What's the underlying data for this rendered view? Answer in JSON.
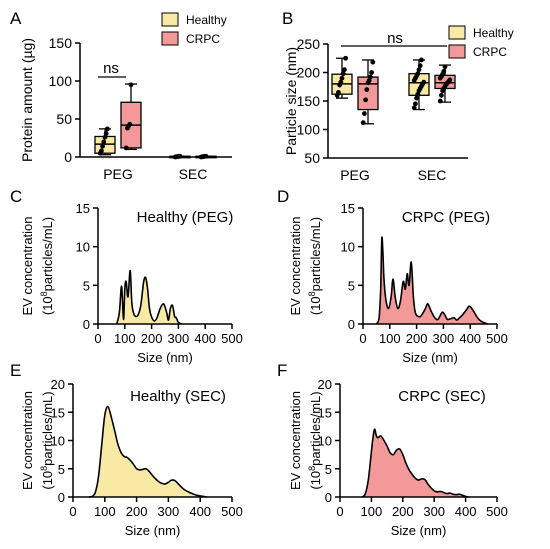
{
  "colors": {
    "healthy": "#f8eaa5",
    "crpc": "#f4999a",
    "stroke": "#000000"
  },
  "chart_data": [
    {
      "panel": "A",
      "type": "box",
      "ylabel": "Protein amount (µg)",
      "ylim": [
        0,
        150
      ],
      "yticks": [
        "0",
        "50",
        "100",
        "150"
      ],
      "categories": [
        "PEG",
        "SEC"
      ],
      "legend": [
        "Healthy",
        "CRPC"
      ],
      "annotation": "ns",
      "series": [
        {
          "name": "Healthy",
          "boxes": [
            {
              "category": "PEG",
              "min": 3,
              "q1": 5,
              "median": 17,
              "q3": 27,
              "max": 37,
              "points": [
                5,
                8,
                14,
                20,
                26,
                31,
                37
              ]
            },
            {
              "category": "SEC",
              "min": 0,
              "q1": 0,
              "median": 0.5,
              "q3": 1,
              "max": 1,
              "points": [
                0,
                0.3,
                0.6,
                0.9,
                1
              ]
            }
          ]
        },
        {
          "name": "CRPC",
          "boxes": [
            {
              "category": "PEG",
              "min": 10,
              "q1": 12,
              "median": 42,
              "q3": 72,
              "max": 96,
              "points": [
                12,
                38,
                41,
                43,
                95
              ]
            },
            {
              "category": "SEC",
              "min": 0,
              "q1": 0,
              "median": 0.5,
              "q3": 1,
              "max": 1,
              "points": [
                0,
                0.3,
                0.6,
                0.9,
                1
              ]
            }
          ]
        }
      ]
    },
    {
      "panel": "B",
      "type": "box",
      "ylabel": "Particle size (nm)",
      "ylim": [
        50,
        250
      ],
      "yticks": [
        "50",
        "100",
        "150",
        "200",
        "250"
      ],
      "categories": [
        "PEG",
        "SEC"
      ],
      "legend": [
        "Healthy",
        "CRPC"
      ],
      "annotation": "ns",
      "series": [
        {
          "name": "Healthy",
          "boxes": [
            {
              "category": "PEG",
              "min": 155,
              "q1": 162,
              "median": 180,
              "q3": 197,
              "max": 225,
              "points": [
                160,
                165,
                178,
                183,
                190,
                198,
                205,
                225
              ]
            },
            {
              "category": "SEC",
              "min": 135,
              "q1": 160,
              "median": 182,
              "q3": 198,
              "max": 222,
              "points": [
                138,
                145,
                155,
                162,
                168,
                172,
                176,
                180,
                183,
                186,
                190,
                194,
                198,
                205,
                212,
                222
              ]
            }
          ]
        },
        {
          "name": "CRPC",
          "boxes": [
            {
              "category": "PEG",
              "min": 110,
              "q1": 135,
              "median": 180,
              "q3": 192,
              "max": 222,
              "points": [
                112,
                128,
                152,
                170,
                182,
                186,
                192,
                200,
                218
              ]
            },
            {
              "category": "SEC",
              "min": 148,
              "q1": 172,
              "median": 182,
              "q3": 195,
              "max": 213,
              "points": [
                150,
                160,
                168,
                172,
                176,
                179,
                182,
                184,
                187,
                190,
                193,
                197,
                202,
                210
              ]
            }
          ]
        }
      ]
    },
    {
      "panel": "C",
      "type": "area",
      "title": "Healthy (PEG)",
      "xlabel": "Size (nm)",
      "ylabel_line1": "EV concentration",
      "ylabel_line2": "particles/mL)",
      "xlim": [
        0,
        500
      ],
      "ylim": [
        0,
        15
      ],
      "xticks": [
        "0",
        "100",
        "200",
        "300",
        "400",
        "500"
      ],
      "yticks": [
        "0",
        "5",
        "10",
        "15"
      ],
      "x": [
        70,
        80,
        88,
        95,
        100,
        105,
        112,
        120,
        126,
        132,
        140,
        150,
        160,
        170,
        178,
        185,
        192,
        200,
        210,
        220,
        232,
        245,
        256,
        263,
        270,
        278,
        286,
        292,
        298,
        305,
        312
      ],
      "y": [
        0,
        1.5,
        4.9,
        0.6,
        4.5,
        5.5,
        3.5,
        6.9,
        2.8,
        1.5,
        1.0,
        1.2,
        2.5,
        5.4,
        6.0,
        4.5,
        2.0,
        0.9,
        0.4,
        0.8,
        2.0,
        2.6,
        1.5,
        0.5,
        2.0,
        2.4,
        1.0,
        0.8,
        0.3,
        0.1,
        0
      ]
    },
    {
      "panel": "D",
      "type": "area",
      "title": "CRPC (PEG)",
      "xlabel": "Size (nm)",
      "ylabel_line1": "EV concentration",
      "ylabel_line2": "particles/mL)",
      "xlim": [
        0,
        500
      ],
      "ylim": [
        0,
        15
      ],
      "xticks": [
        "0",
        "100",
        "200",
        "300",
        "400",
        "500"
      ],
      "yticks": [
        "0",
        "5",
        "10",
        "15"
      ],
      "x": [
        50,
        60,
        66,
        70,
        74,
        78,
        85,
        95,
        105,
        112,
        120,
        130,
        140,
        150,
        158,
        165,
        172,
        180,
        188,
        195,
        205,
        215,
        225,
        233,
        242,
        255,
        268,
        280,
        295,
        305,
        315,
        328,
        340,
        350,
        360,
        372,
        385,
        397,
        410,
        422,
        435,
        450,
        465
      ],
      "y": [
        0,
        0.8,
        4.5,
        11.0,
        9.5,
        6.0,
        3.2,
        2.0,
        3.5,
        5.8,
        3.5,
        2.0,
        3.0,
        5.5,
        4.5,
        6.5,
        5.0,
        8.0,
        3.5,
        1.5,
        1.0,
        1.0,
        1.5,
        2.0,
        2.6,
        1.6,
        0.8,
        0.6,
        1.5,
        1.2,
        0.6,
        0.7,
        0.8,
        0.5,
        0.8,
        1.2,
        1.8,
        2.3,
        1.8,
        1.1,
        0.5,
        0.2,
        0
      ]
    },
    {
      "panel": "E",
      "type": "area",
      "title": "Healthy (SEC)",
      "xlabel": "Size (nm)",
      "ylabel_line1": "EV concentration",
      "ylabel_line2": "particles/mL)",
      "xlim": [
        0,
        500
      ],
      "ylim": [
        0,
        20
      ],
      "xticks": [
        "0",
        "100",
        "200",
        "300",
        "400",
        "500"
      ],
      "yticks": [
        "0",
        "5",
        "10",
        "15",
        "20"
      ],
      "x": [
        50,
        60,
        70,
        80,
        90,
        100,
        110,
        120,
        130,
        140,
        150,
        160,
        170,
        180,
        190,
        200,
        210,
        220,
        230,
        240,
        250,
        260,
        270,
        280,
        290,
        300,
        310,
        320,
        330,
        340,
        350,
        360,
        370,
        380,
        390,
        400,
        410,
        420
      ],
      "y": [
        0,
        0.1,
        0.8,
        3.5,
        9.0,
        14.5,
        16.0,
        14.2,
        12.0,
        9.6,
        8.0,
        7.2,
        7.0,
        6.5,
        5.8,
        5.0,
        4.8,
        4.9,
        5.0,
        4.5,
        3.8,
        3.2,
        2.7,
        2.4,
        2.3,
        2.6,
        3.0,
        2.9,
        2.4,
        1.8,
        1.3,
        1.0,
        0.7,
        0.5,
        0.3,
        0.2,
        0.1,
        0
      ]
    },
    {
      "panel": "F",
      "type": "area",
      "title": "CRPC (SEC)",
      "xlabel": "Size (nm)",
      "ylabel_line1": "EV concentration",
      "ylabel_line2": "particles/mL)",
      "xlim": [
        0,
        500
      ],
      "ylim": [
        0,
        20
      ],
      "xticks": [
        "0",
        "100",
        "200",
        "300",
        "400",
        "500"
      ],
      "yticks": [
        "0",
        "5",
        "10",
        "15",
        "20"
      ],
      "x": [
        70,
        80,
        90,
        100,
        105,
        110,
        115,
        120,
        130,
        140,
        150,
        160,
        170,
        180,
        190,
        200,
        210,
        220,
        230,
        240,
        250,
        260,
        270,
        280,
        290,
        300,
        310,
        320,
        330,
        340,
        350,
        360,
        370,
        380,
        390,
        400,
        410
      ],
      "y": [
        0,
        0.5,
        3.0,
        8.0,
        10.5,
        12.0,
        11.0,
        10.5,
        10.8,
        10.0,
        9.0,
        7.8,
        7.5,
        8.3,
        8.5,
        7.5,
        6.0,
        4.8,
        4.0,
        3.3,
        3.0,
        3.2,
        3.1,
        2.3,
        1.6,
        1.1,
        0.9,
        1.0,
        0.8,
        0.6,
        0.7,
        0.5,
        0.4,
        0.5,
        0.3,
        0.1,
        0
      ]
    }
  ]
}
